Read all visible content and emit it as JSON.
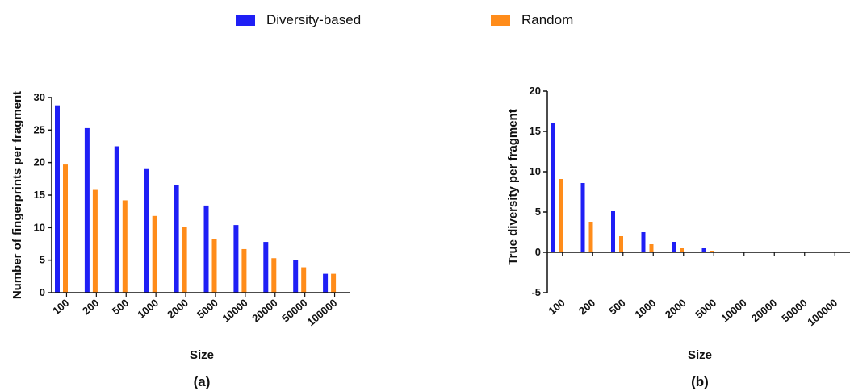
{
  "legend": {
    "series_a": "Diversity-based",
    "series_b": "Random"
  },
  "colors": {
    "diversity": "#1f1ff5",
    "random": "#ff8c1a",
    "axis": "#111111"
  },
  "chart_data": [
    {
      "type": "bar",
      "panel_label": "(a)",
      "categories": [
        "100",
        "200",
        "500",
        "1000",
        "2000",
        "5000",
        "10000",
        "20000",
        "50000",
        "100000"
      ],
      "series": [
        {
          "name": "Diversity-based",
          "values": [
            28.8,
            25.3,
            22.5,
            19.0,
            16.6,
            13.4,
            10.4,
            7.8,
            5.0,
            2.9
          ]
        },
        {
          "name": "Random",
          "values": [
            19.7,
            15.8,
            14.2,
            11.8,
            10.1,
            8.2,
            6.7,
            5.3,
            3.9,
            2.9
          ]
        }
      ],
      "xlabel": "Size",
      "ylabel": "Number of fingerprints per fragment",
      "ylim": [
        0,
        30
      ],
      "yticks": [
        0,
        5,
        10,
        15,
        20,
        25,
        30
      ],
      "grid": false
    },
    {
      "type": "bar",
      "panel_label": "(b)",
      "categories": [
        "100",
        "200",
        "500",
        "1000",
        "2000",
        "5000",
        "10000",
        "20000",
        "50000",
        "100000"
      ],
      "series": [
        {
          "name": "Diversity-based",
          "values": [
            16.0,
            8.6,
            5.1,
            2.5,
            1.3,
            0.5,
            0,
            0,
            0,
            0
          ]
        },
        {
          "name": "Random",
          "values": [
            9.1,
            3.8,
            2.0,
            1.0,
            0.5,
            0.2,
            0,
            0,
            0,
            0
          ]
        }
      ],
      "xlabel": "Size",
      "ylabel": "True diversity per fragment",
      "ylim": [
        -5,
        20
      ],
      "yticks": [
        -5,
        0,
        5,
        10,
        15,
        20
      ],
      "grid": false
    }
  ]
}
